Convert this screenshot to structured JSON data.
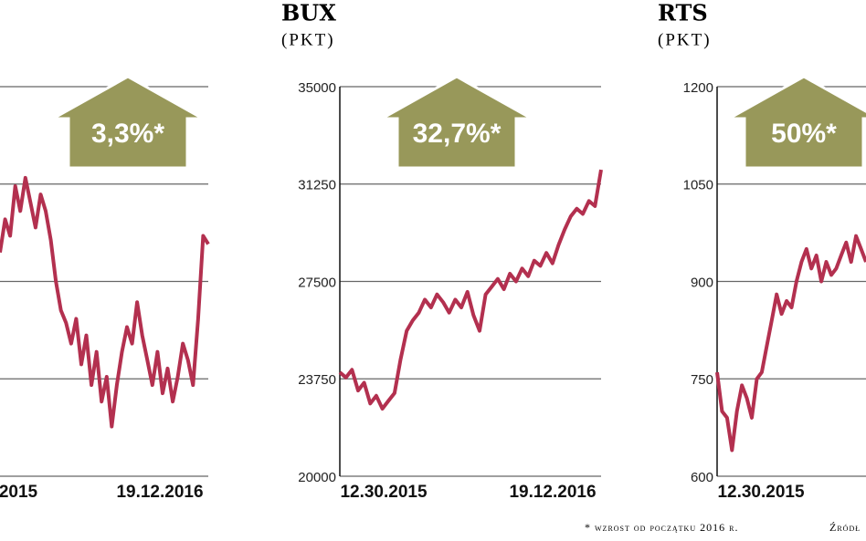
{
  "chart_data": [
    {
      "type": "line",
      "badge": "3,3%*",
      "x_labels": [
        "2015",
        "19.12.2016"
      ],
      "grid": true,
      "series": [
        {
          "color": "#b3304f",
          "values": [
            62,
            70,
            66,
            78,
            72,
            80,
            74,
            68,
            76,
            72,
            65,
            55,
            48,
            45,
            40,
            46,
            35,
            42,
            30,
            38,
            26,
            32,
            20,
            30,
            38,
            44,
            40,
            50,
            42,
            36,
            30,
            38,
            28,
            34,
            26,
            32,
            40,
            36,
            30,
            46,
            66,
            64
          ]
        }
      ]
    },
    {
      "type": "line",
      "title": "BUX",
      "subtitle": "(PKT)",
      "badge": "32,7%*",
      "x_labels": [
        "12.30.2015",
        "19.12.2016"
      ],
      "grid": true,
      "ylim": [
        20000,
        35000
      ],
      "yticks": [
        20000,
        23750,
        27500,
        31250,
        35000
      ],
      "series": [
        {
          "color": "#b3304f",
          "values": [
            24000,
            23800,
            24100,
            23300,
            23600,
            22800,
            23100,
            22600,
            22900,
            23200,
            24500,
            25600,
            26000,
            26300,
            26800,
            26500,
            27000,
            26700,
            26300,
            26800,
            26500,
            27100,
            26200,
            25600,
            27000,
            27300,
            27600,
            27200,
            27800,
            27500,
            28000,
            27700,
            28300,
            28100,
            28600,
            28200,
            28900,
            29500,
            30000,
            30300,
            30100,
            30600,
            30400,
            31800
          ]
        }
      ]
    },
    {
      "type": "line",
      "title": "RTS",
      "subtitle": "(PKT)",
      "badge": "50%*",
      "x_labels": [
        "12.30.2015"
      ],
      "grid": true,
      "ylim": [
        600,
        1200
      ],
      "yticks": [
        600,
        750,
        900,
        1050,
        1200
      ],
      "series": [
        {
          "color": "#b3304f",
          "values": [
            760,
            700,
            690,
            640,
            700,
            740,
            720,
            690,
            750,
            760,
            800,
            840,
            880,
            850,
            870,
            860,
            900,
            930,
            950,
            920,
            940,
            900,
            930,
            910,
            920,
            940,
            960,
            930,
            970,
            950,
            930
          ]
        }
      ]
    }
  ],
  "footnote": "* wzrost od początku 2016 r.",
  "source": "Źródł"
}
